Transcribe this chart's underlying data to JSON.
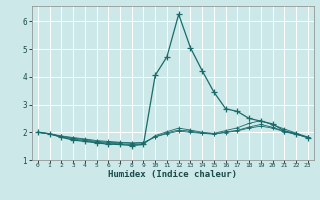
{
  "xlabel": "Humidex (Indice chaleur)",
  "bg_color": "#cce8e8",
  "grid_color": "#ffffff",
  "line_color": "#1a6b6b",
  "xlim": [
    -0.5,
    23.5
  ],
  "ylim": [
    1.0,
    6.55
  ],
  "yticks": [
    1,
    2,
    3,
    4,
    5,
    6
  ],
  "xticks": [
    0,
    1,
    2,
    3,
    4,
    5,
    6,
    7,
    8,
    9,
    10,
    11,
    12,
    13,
    14,
    15,
    16,
    17,
    18,
    19,
    20,
    21,
    22,
    23
  ],
  "lines": [
    {
      "x": [
        0,
        1,
        2,
        3,
        4,
        5,
        6,
        7,
        8,
        9,
        10,
        11,
        12,
        13,
        14,
        15,
        16,
        17,
        18,
        19,
        20,
        21,
        22,
        23
      ],
      "y": [
        2.0,
        1.95,
        1.82,
        1.72,
        1.67,
        1.62,
        1.57,
        1.56,
        1.52,
        1.56,
        4.05,
        4.72,
        6.25,
        5.05,
        4.22,
        3.45,
        2.85,
        2.75,
        2.5,
        2.4,
        2.3,
        2.05,
        1.95,
        1.8
      ]
    },
    {
      "x": [
        0,
        1,
        2,
        3,
        4,
        5,
        6,
        7,
        8,
        9,
        10,
        11,
        12,
        13,
        14,
        15,
        16,
        17,
        18,
        19,
        20,
        21,
        22,
        23
      ],
      "y": [
        2.0,
        1.93,
        1.83,
        1.76,
        1.7,
        1.64,
        1.61,
        1.58,
        1.56,
        1.57,
        1.88,
        2.02,
        2.15,
        2.08,
        2.0,
        1.96,
        2.06,
        2.16,
        2.32,
        2.42,
        2.27,
        2.12,
        1.97,
        1.83
      ]
    },
    {
      "x": [
        0,
        1,
        2,
        3,
        4,
        5,
        6,
        7,
        8,
        9,
        10,
        11,
        12,
        13,
        14,
        15,
        16,
        17,
        18,
        19,
        20,
        21,
        22,
        23
      ],
      "y": [
        2.0,
        1.94,
        1.85,
        1.79,
        1.73,
        1.67,
        1.64,
        1.62,
        1.6,
        1.61,
        1.84,
        1.98,
        2.08,
        2.04,
        1.97,
        1.94,
        2.01,
        2.07,
        2.19,
        2.28,
        2.18,
        2.04,
        1.93,
        1.82
      ]
    },
    {
      "x": [
        0,
        1,
        2,
        3,
        4,
        5,
        6,
        7,
        8,
        9,
        10,
        11,
        12,
        13,
        14,
        15,
        16,
        17,
        18,
        19,
        20,
        21,
        22,
        23
      ],
      "y": [
        2.0,
        1.95,
        1.87,
        1.81,
        1.76,
        1.7,
        1.67,
        1.64,
        1.62,
        1.63,
        1.83,
        1.95,
        2.04,
        2.0,
        1.96,
        1.93,
        1.99,
        2.05,
        2.15,
        2.22,
        2.15,
        2.02,
        1.92,
        1.82
      ]
    }
  ]
}
